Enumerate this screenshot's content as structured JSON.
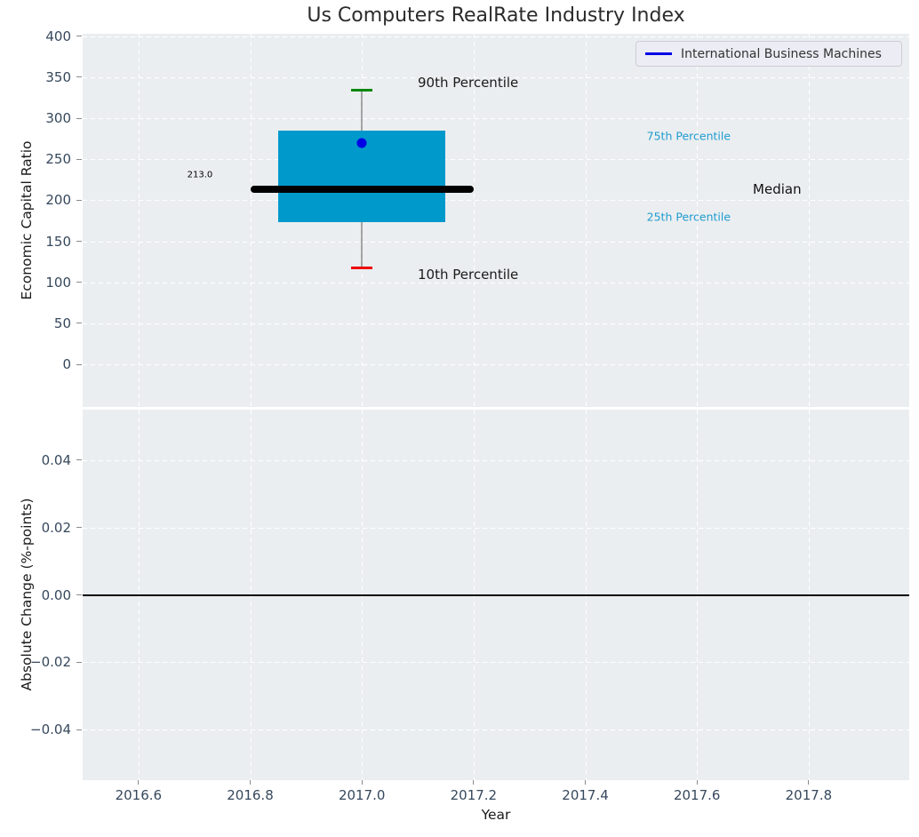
{
  "title": "Us Computers RealRate Industry Index",
  "legend": {
    "label": "International Business Machines",
    "line_color": "#0000e6",
    "position": "upper right"
  },
  "chart_data": [
    {
      "type": "box",
      "title": "Us Computers RealRate Industry Index",
      "xlabel": "Year",
      "ylabel": "Economic Capital Ratio",
      "xlim": [
        2016.5,
        2017.98
      ],
      "ylim": [
        -52,
        403
      ],
      "grid": "white dashed on light gray background",
      "x_tick_values": [
        2016.6,
        2016.8,
        2017.0,
        2017.2,
        2017.4,
        2017.6,
        2017.8
      ],
      "x_tick_labels": [
        "2016.6",
        "2016.8",
        "2017.0",
        "2017.2",
        "2017.4",
        "2017.6",
        "2017.8"
      ],
      "y_tick_values": [
        400,
        350,
        300,
        250,
        200,
        150,
        100,
        50,
        0
      ],
      "y_tick_labels": [
        "400",
        "350",
        "300",
        "250",
        "200",
        "150",
        "100",
        "50",
        "0"
      ],
      "box": {
        "x": 2017.0,
        "x_left": 2016.85,
        "x_right": 2017.15,
        "q1": 173,
        "median": 213.0,
        "q3": 285,
        "p10": 117.5,
        "p90": 334,
        "cap_halfwidth": 0.019,
        "fill_color": "#0099cc",
        "p90_cap_color": "#0a870a",
        "p10_cap_color": "#ee0000",
        "whisker_color": "#555555",
        "median_color": "#000000",
        "median_x_start": 2016.8,
        "median_x_end": 2017.2,
        "median_label": "213.0"
      },
      "series": [
        {
          "name": "International Business Machines",
          "x": [
            2017.0
          ],
          "y": [
            270
          ],
          "color": "#0000e6",
          "marker": "dot"
        }
      ],
      "annotations": [
        {
          "text": "90th Percentile",
          "x": 2017.1,
          "y": 343,
          "color": "#1a1a1a",
          "font_size": 15,
          "ha": "left"
        },
        {
          "text": "10th Percentile",
          "x": 2017.1,
          "y": 109,
          "color": "#1a1a1a",
          "font_size": 15,
          "ha": "left"
        },
        {
          "text": "213.0",
          "x": 2016.71,
          "y": 231,
          "color": "#000000",
          "font_size": 10,
          "ha": "center"
        },
        {
          "text": "75th Percentile",
          "x": 2017.51,
          "y": 278,
          "color": "#1e9cd0",
          "font_size": 12.5,
          "ha": "left"
        },
        {
          "text": "Median",
          "x": 2017.7,
          "y": 213.5,
          "color": "#111111",
          "font_size": 15,
          "ha": "left"
        },
        {
          "text": "25th Percentile",
          "x": 2017.51,
          "y": 180,
          "color": "#1e9cd0",
          "font_size": 12.5,
          "ha": "left"
        }
      ]
    },
    {
      "type": "line",
      "xlabel": "Year",
      "ylabel": "Absolute Change (%-points)",
      "xlim": [
        2016.5,
        2017.98
      ],
      "ylim": [
        -0.055,
        0.055
      ],
      "grid": "white dashed on light gray background",
      "y_tick_values": [
        0.04,
        0.02,
        0.0,
        -0.02,
        -0.04
      ],
      "y_tick_labels": [
        "0.04",
        "0.02",
        "0.00",
        "−0.02",
        "−0.04"
      ],
      "zero_line": {
        "y": 0.0,
        "color": "#000000"
      },
      "series": []
    }
  ],
  "colors": {
    "plot_background": "#ebeef0",
    "gridline": "#ffffff",
    "tick_label": "#36485c",
    "box_fill": "#0099cc",
    "accent_blue": "#0000e6"
  }
}
